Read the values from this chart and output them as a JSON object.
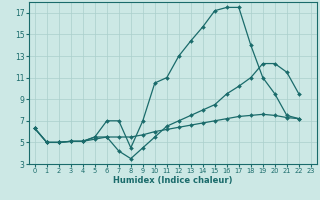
{
  "xlabel": "Humidex (Indice chaleur)",
  "ylabel": "",
  "bg_color": "#cce8e5",
  "grid_color": "#aacfcc",
  "line_color": "#1a6b6b",
  "xlim": [
    -0.5,
    23.5
  ],
  "ylim": [
    3,
    18
  ],
  "xticks": [
    0,
    1,
    2,
    3,
    4,
    5,
    6,
    7,
    8,
    9,
    10,
    11,
    12,
    13,
    14,
    15,
    16,
    17,
    18,
    19,
    20,
    21,
    22,
    23
  ],
  "yticks": [
    3,
    5,
    7,
    9,
    11,
    13,
    15,
    17
  ],
  "line1_x": [
    0,
    1,
    2,
    3,
    4,
    5,
    6,
    7,
    8,
    9,
    10,
    11,
    12,
    13,
    14,
    15,
    16,
    17,
    18,
    19,
    20,
    21,
    22
  ],
  "line1_y": [
    6.3,
    5.0,
    5.0,
    5.1,
    5.1,
    5.5,
    7.0,
    7.0,
    4.5,
    7.0,
    10.5,
    11.0,
    13.0,
    14.4,
    15.7,
    17.2,
    17.5,
    17.5,
    14.0,
    11.0,
    9.5,
    7.5,
    7.2
  ],
  "line2_x": [
    0,
    1,
    2,
    3,
    4,
    5,
    6,
    7,
    8,
    9,
    10,
    11,
    12,
    13,
    14,
    15,
    16,
    17,
    18,
    19,
    20,
    21,
    22
  ],
  "line2_y": [
    6.3,
    5.0,
    5.0,
    5.1,
    5.1,
    5.5,
    5.5,
    4.2,
    3.5,
    4.5,
    5.5,
    6.5,
    7.0,
    7.5,
    8.0,
    8.5,
    9.5,
    10.2,
    11.0,
    12.3,
    12.3,
    11.5,
    9.5
  ],
  "line3_x": [
    0,
    1,
    2,
    3,
    4,
    5,
    6,
    7,
    8,
    9,
    10,
    11,
    12,
    13,
    14,
    15,
    16,
    17,
    18,
    19,
    20,
    21,
    22
  ],
  "line3_y": [
    6.3,
    5.0,
    5.0,
    5.1,
    5.1,
    5.3,
    5.5,
    5.5,
    5.5,
    5.7,
    6.0,
    6.2,
    6.4,
    6.6,
    6.8,
    7.0,
    7.2,
    7.4,
    7.5,
    7.6,
    7.5,
    7.3,
    7.2
  ]
}
